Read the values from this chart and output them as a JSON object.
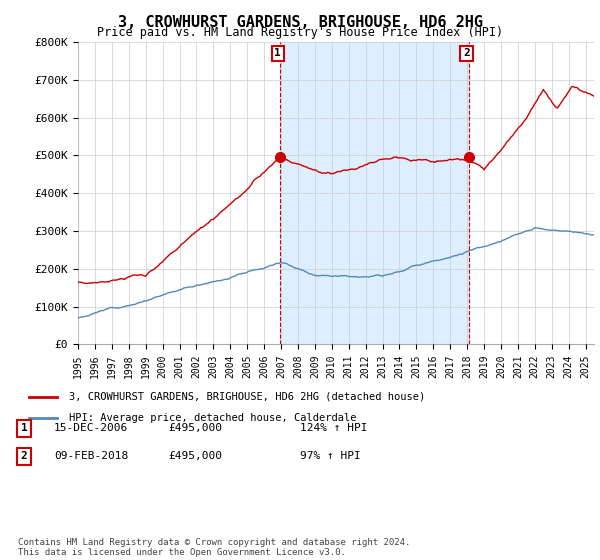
{
  "title": "3, CROWHURST GARDENS, BRIGHOUSE, HD6 2HG",
  "subtitle": "Price paid vs. HM Land Registry's House Price Index (HPI)",
  "legend_label_red": "3, CROWHURST GARDENS, BRIGHOUSE, HD6 2HG (detached house)",
  "legend_label_blue": "HPI: Average price, detached house, Calderdale",
  "annotation1_label": "1",
  "annotation1_date": "15-DEC-2006",
  "annotation1_price": "£495,000",
  "annotation1_hpi": "124% ↑ HPI",
  "annotation2_label": "2",
  "annotation2_date": "09-FEB-2018",
  "annotation2_price": "£495,000",
  "annotation2_hpi": "97% ↑ HPI",
  "footer": "Contains HM Land Registry data © Crown copyright and database right 2024.\nThis data is licensed under the Open Government Licence v3.0.",
  "red_color": "#cc0000",
  "blue_color": "#5588bb",
  "shade_color": "#ddeeff",
  "annotation_color": "#cc0000",
  "bg_color": "#ffffff",
  "grid_color": "#cccccc",
  "ylim": [
    0,
    800000
  ],
  "yticks": [
    0,
    100000,
    200000,
    300000,
    400000,
    500000,
    600000,
    700000,
    800000
  ],
  "ytick_labels": [
    "£0",
    "£100K",
    "£200K",
    "£300K",
    "£400K",
    "£500K",
    "£600K",
    "£700K",
    "£800K"
  ],
  "xmin": 1995.0,
  "xmax": 2025.5,
  "xticks": [
    1995,
    1996,
    1997,
    1998,
    1999,
    2000,
    2001,
    2002,
    2003,
    2004,
    2005,
    2006,
    2007,
    2008,
    2009,
    2010,
    2011,
    2012,
    2013,
    2014,
    2015,
    2016,
    2017,
    2018,
    2019,
    2020,
    2021,
    2022,
    2023,
    2024,
    2025
  ],
  "ann1_x": 2006.96,
  "ann1_y": 495000,
  "ann2_x": 2018.11,
  "ann2_y": 495000
}
